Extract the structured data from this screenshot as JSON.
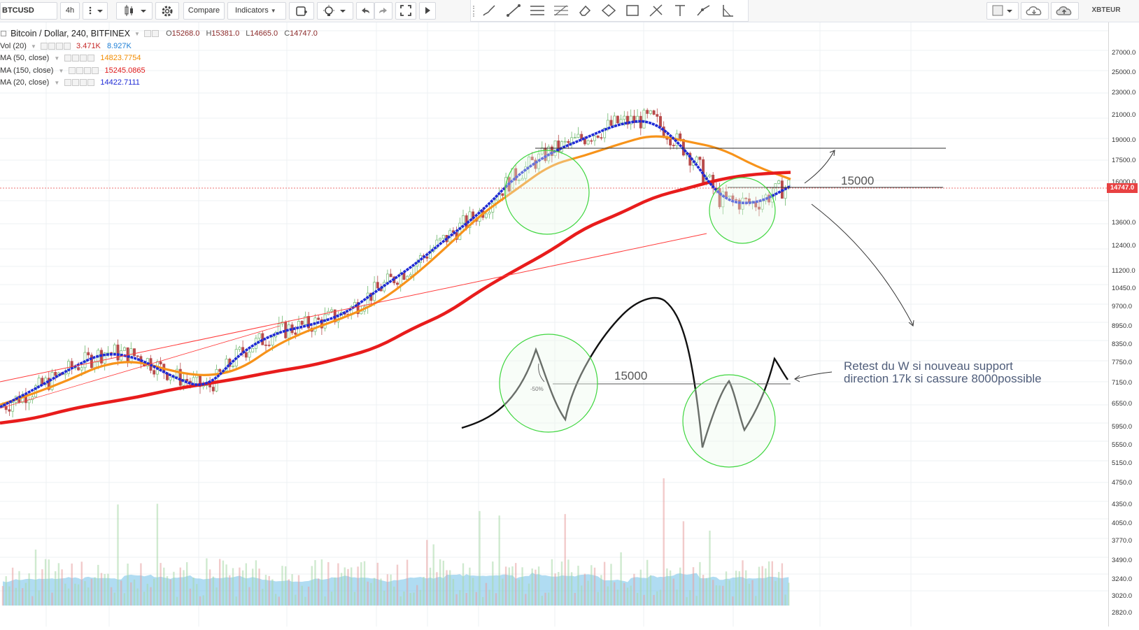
{
  "toolbar": {
    "symbol": "BTCUSD",
    "interval": "4h",
    "compare_label": "Compare",
    "indicators_label": "Indicators",
    "user_symbol": "XBTEUR"
  },
  "legend": {
    "title": "Bitcoin / Dollar, 240, BITFINEX",
    "ohlc": {
      "open": "15268.0",
      "high": "15381.0",
      "low": "14665.0",
      "close": "14747.0"
    },
    "vol": {
      "label": "Vol (20)",
      "v1": "3.471K",
      "v2": "8.927K"
    },
    "ma50": {
      "label": "MA (50, close)",
      "value": "14823.7754"
    },
    "ma150": {
      "label": "MA (150, close)",
      "value": "15245.0865"
    },
    "ma20": {
      "label": "MA (20, close)",
      "value": "14422.7111"
    }
  },
  "colors": {
    "ma50": "#f7931a",
    "ma150": "#e81c1c",
    "ma20": "#1f2bd6",
    "up_candle": "#6fb86f",
    "down_candle": "#b84b4b",
    "volume_area": "#6fbfe8",
    "last_price": "#e84142"
  },
  "price_scale": {
    "ticks": [
      "27000.0",
      "25000.0",
      "23000.0",
      "21000.0",
      "19000.0",
      "17500.0",
      "16000.0",
      "14747.0",
      "13600.0",
      "12400.0",
      "11200.0",
      "10450.0",
      "9700.0",
      "8950.0",
      "8350.0",
      "7750.0",
      "7150.0",
      "6550.0",
      "5950.0",
      "5550.0",
      "5150.0",
      "4750.0",
      "4350.0",
      "4050.0",
      "3770.0",
      "3490.0",
      "3240.0",
      "3020.0",
      "2820.0"
    ],
    "last_price": "14747.0"
  },
  "annotations": {
    "level_label_top": "15000",
    "level_label_sketch": "15000",
    "pct_label": "-50%",
    "note_line1": "Retest du W si nouveau support",
    "note_line2": "direction 17k si cassure 8000possible"
  },
  "chart_data": {
    "type": "line",
    "title": "Bitcoin / Dollar, 240, BITFINEX",
    "series": [
      {
        "name": "MA (50, close)",
        "values": [
          5950,
          6250,
          6600,
          7050,
          7150,
          6850,
          6700,
          6900,
          7600,
          8100,
          8500,
          9000,
          10000,
          11300,
          12900,
          14200,
          15700,
          16300,
          17100,
          17800,
          17300,
          16800,
          15600,
          14824
        ]
      },
      {
        "name": "MA (150, close)",
        "values": [
          5550,
          5650,
          5850,
          6000,
          6150,
          6350,
          6500,
          6650,
          6850,
          7000,
          7250,
          7550,
          8150,
          8650,
          9500,
          10300,
          11100,
          12200,
          12900,
          13800,
          14300,
          14850,
          15150,
          15245
        ]
      },
      {
        "name": "MA (20, close)",
        "values": [
          5900,
          6350,
          6900,
          7400,
          7250,
          6700,
          6350,
          7400,
          8000,
          8250,
          8600,
          9500,
          10450,
          11700,
          13000,
          15000,
          16500,
          17500,
          18600,
          18900,
          16600,
          13600,
          13400,
          14423
        ]
      }
    ],
    "last": {
      "open": 15268.0,
      "high": 15381.0,
      "low": 14665.0,
      "close": 14747.0
    }
  }
}
